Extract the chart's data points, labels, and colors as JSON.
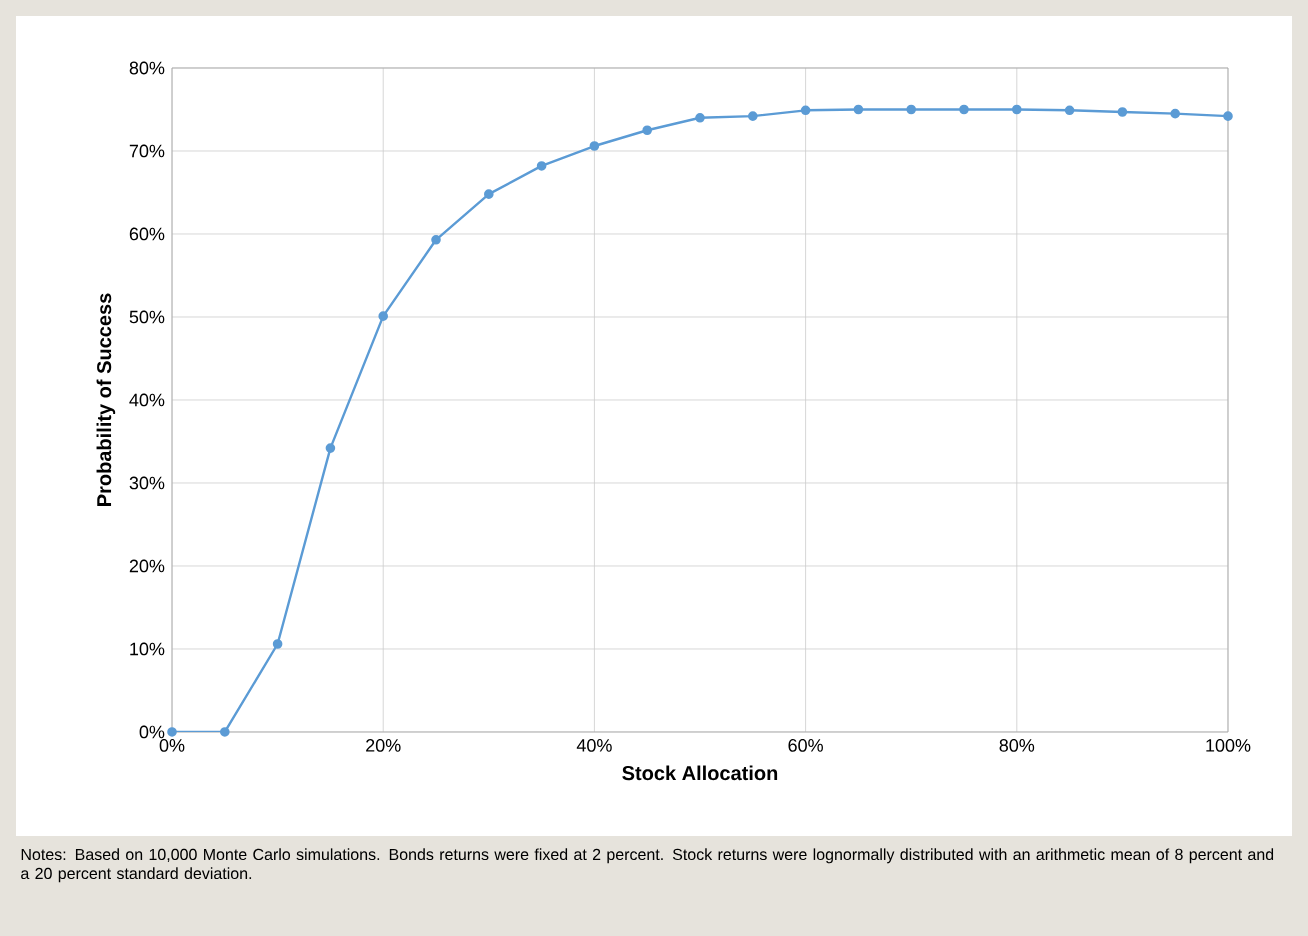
{
  "chart_data": {
    "type": "line",
    "xlabel": "Stock Allocation",
    "ylabel": "Probability of Success",
    "x": [
      0,
      5,
      10,
      15,
      20,
      25,
      30,
      35,
      40,
      45,
      50,
      55,
      60,
      65,
      70,
      75,
      80,
      85,
      90,
      95,
      100
    ],
    "series": [
      {
        "color": "#5b9bd5",
        "values": [
          0,
          0,
          10.6,
          34.2,
          50.1,
          59.3,
          64.8,
          68.2,
          70.6,
          72.5,
          74,
          74.2,
          74.9,
          75,
          75,
          75,
          75,
          74.9,
          74.7,
          74.5,
          74.2
        ]
      }
    ],
    "xlim": [
      0,
      100
    ],
    "ylim": [
      0,
      80
    ],
    "xticks": [
      {
        "value": 0,
        "label": "0%"
      },
      {
        "value": 20,
        "label": "20%"
      },
      {
        "value": 40,
        "label": "40%"
      },
      {
        "value": 60,
        "label": "60%"
      },
      {
        "value": 80,
        "label": "80%"
      },
      {
        "value": 100,
        "label": "100%"
      }
    ],
    "yticks": [
      {
        "value": 0,
        "label": "0%"
      },
      {
        "value": 10,
        "label": "10%"
      },
      {
        "value": 20,
        "label": "20%"
      },
      {
        "value": 30,
        "label": "30%"
      },
      {
        "value": 40,
        "label": "40%"
      },
      {
        "value": 50,
        "label": "50%"
      },
      {
        "value": 60,
        "label": "60%"
      },
      {
        "value": 70,
        "label": "70%"
      },
      {
        "value": 80,
        "label": "80%"
      }
    ],
    "grid": true,
    "marker": "circle",
    "line_style": "solid",
    "annotations": [
      "Notes: Based on 10,000 Monte Carlo simulations. Bonds returns were fixed at 2 percent. Stock returns were lognormally distributed with an arithmetic mean of 8 percent and a 20 percent standard deviation."
    ]
  }
}
